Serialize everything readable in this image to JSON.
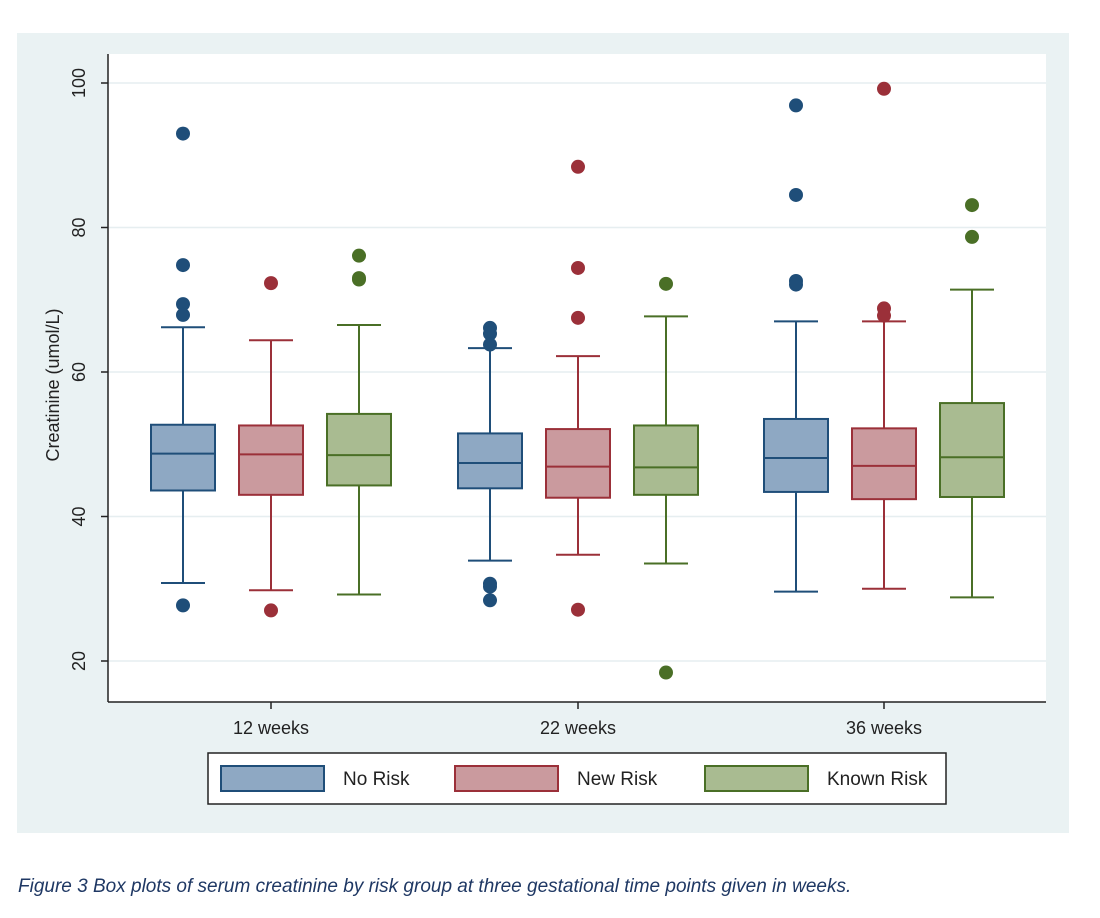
{
  "chart_data": {
    "type": "box",
    "ylabel": "Creatinine (umol/L)",
    "ylim": [
      15,
      102
    ],
    "yticks": [
      20,
      40,
      60,
      80,
      100
    ],
    "grid": true,
    "legend_position": "bottom",
    "categories": [
      "12 weeks",
      "22 weeks",
      "36 weeks"
    ],
    "series": [
      {
        "name": "No Risk",
        "color": "#1f4e79",
        "fill": "#8ea8c3",
        "boxes": [
          {
            "category": "12 weeks",
            "whisker_low": 30.8,
            "q1": 43.6,
            "median": 48.7,
            "q3": 52.7,
            "whisker_high": 66.2,
            "outliers": [
              93.0,
              74.8,
              69.4,
              67.9,
              27.7
            ]
          },
          {
            "category": "22 weeks",
            "whisker_low": 33.9,
            "q1": 43.9,
            "median": 47.4,
            "q3": 51.5,
            "whisker_high": 63.3,
            "outliers": [
              66.1,
              65.3,
              63.8,
              30.7,
              30.3,
              28.4
            ]
          },
          {
            "category": "36 weeks",
            "whisker_low": 29.6,
            "q1": 43.4,
            "median": 48.1,
            "q3": 53.5,
            "whisker_high": 67.0,
            "outliers": [
              96.9,
              84.5,
              72.6,
              72.1
            ]
          }
        ]
      },
      {
        "name": "New Risk",
        "color": "#9b3039",
        "fill": "#ca9a9e",
        "boxes": [
          {
            "category": "12 weeks",
            "whisker_low": 29.8,
            "q1": 43.0,
            "median": 48.6,
            "q3": 52.6,
            "whisker_high": 64.4,
            "outliers": [
              72.3,
              27.0
            ]
          },
          {
            "category": "22 weeks",
            "whisker_low": 34.7,
            "q1": 42.6,
            "median": 46.9,
            "q3": 52.1,
            "whisker_high": 62.2,
            "outliers": [
              88.4,
              74.4,
              67.5,
              27.1
            ]
          },
          {
            "category": "36 weeks",
            "whisker_low": 30.0,
            "q1": 42.4,
            "median": 47.0,
            "q3": 52.2,
            "whisker_high": 67.0,
            "outliers": [
              99.2,
              68.8,
              67.8
            ]
          }
        ]
      },
      {
        "name": "Known Risk",
        "color": "#4a6f26",
        "fill": "#a9bb91",
        "boxes": [
          {
            "category": "12 weeks",
            "whisker_low": 29.2,
            "q1": 44.3,
            "median": 48.5,
            "q3": 54.2,
            "whisker_high": 66.5,
            "outliers": [
              76.1,
              73.0,
              72.8
            ]
          },
          {
            "category": "22 weeks",
            "whisker_low": 33.5,
            "q1": 43.0,
            "median": 46.8,
            "q3": 52.6,
            "whisker_high": 67.7,
            "outliers": [
              72.2,
              18.4
            ]
          },
          {
            "category": "36 weeks",
            "whisker_low": 28.8,
            "q1": 42.7,
            "median": 48.2,
            "q3": 55.7,
            "whisker_high": 71.4,
            "outliers": [
              83.1,
              78.7
            ]
          }
        ]
      }
    ]
  },
  "caption": "Figure 3 Box plots of serum creatinine by risk group at three gestational time points given in weeks."
}
